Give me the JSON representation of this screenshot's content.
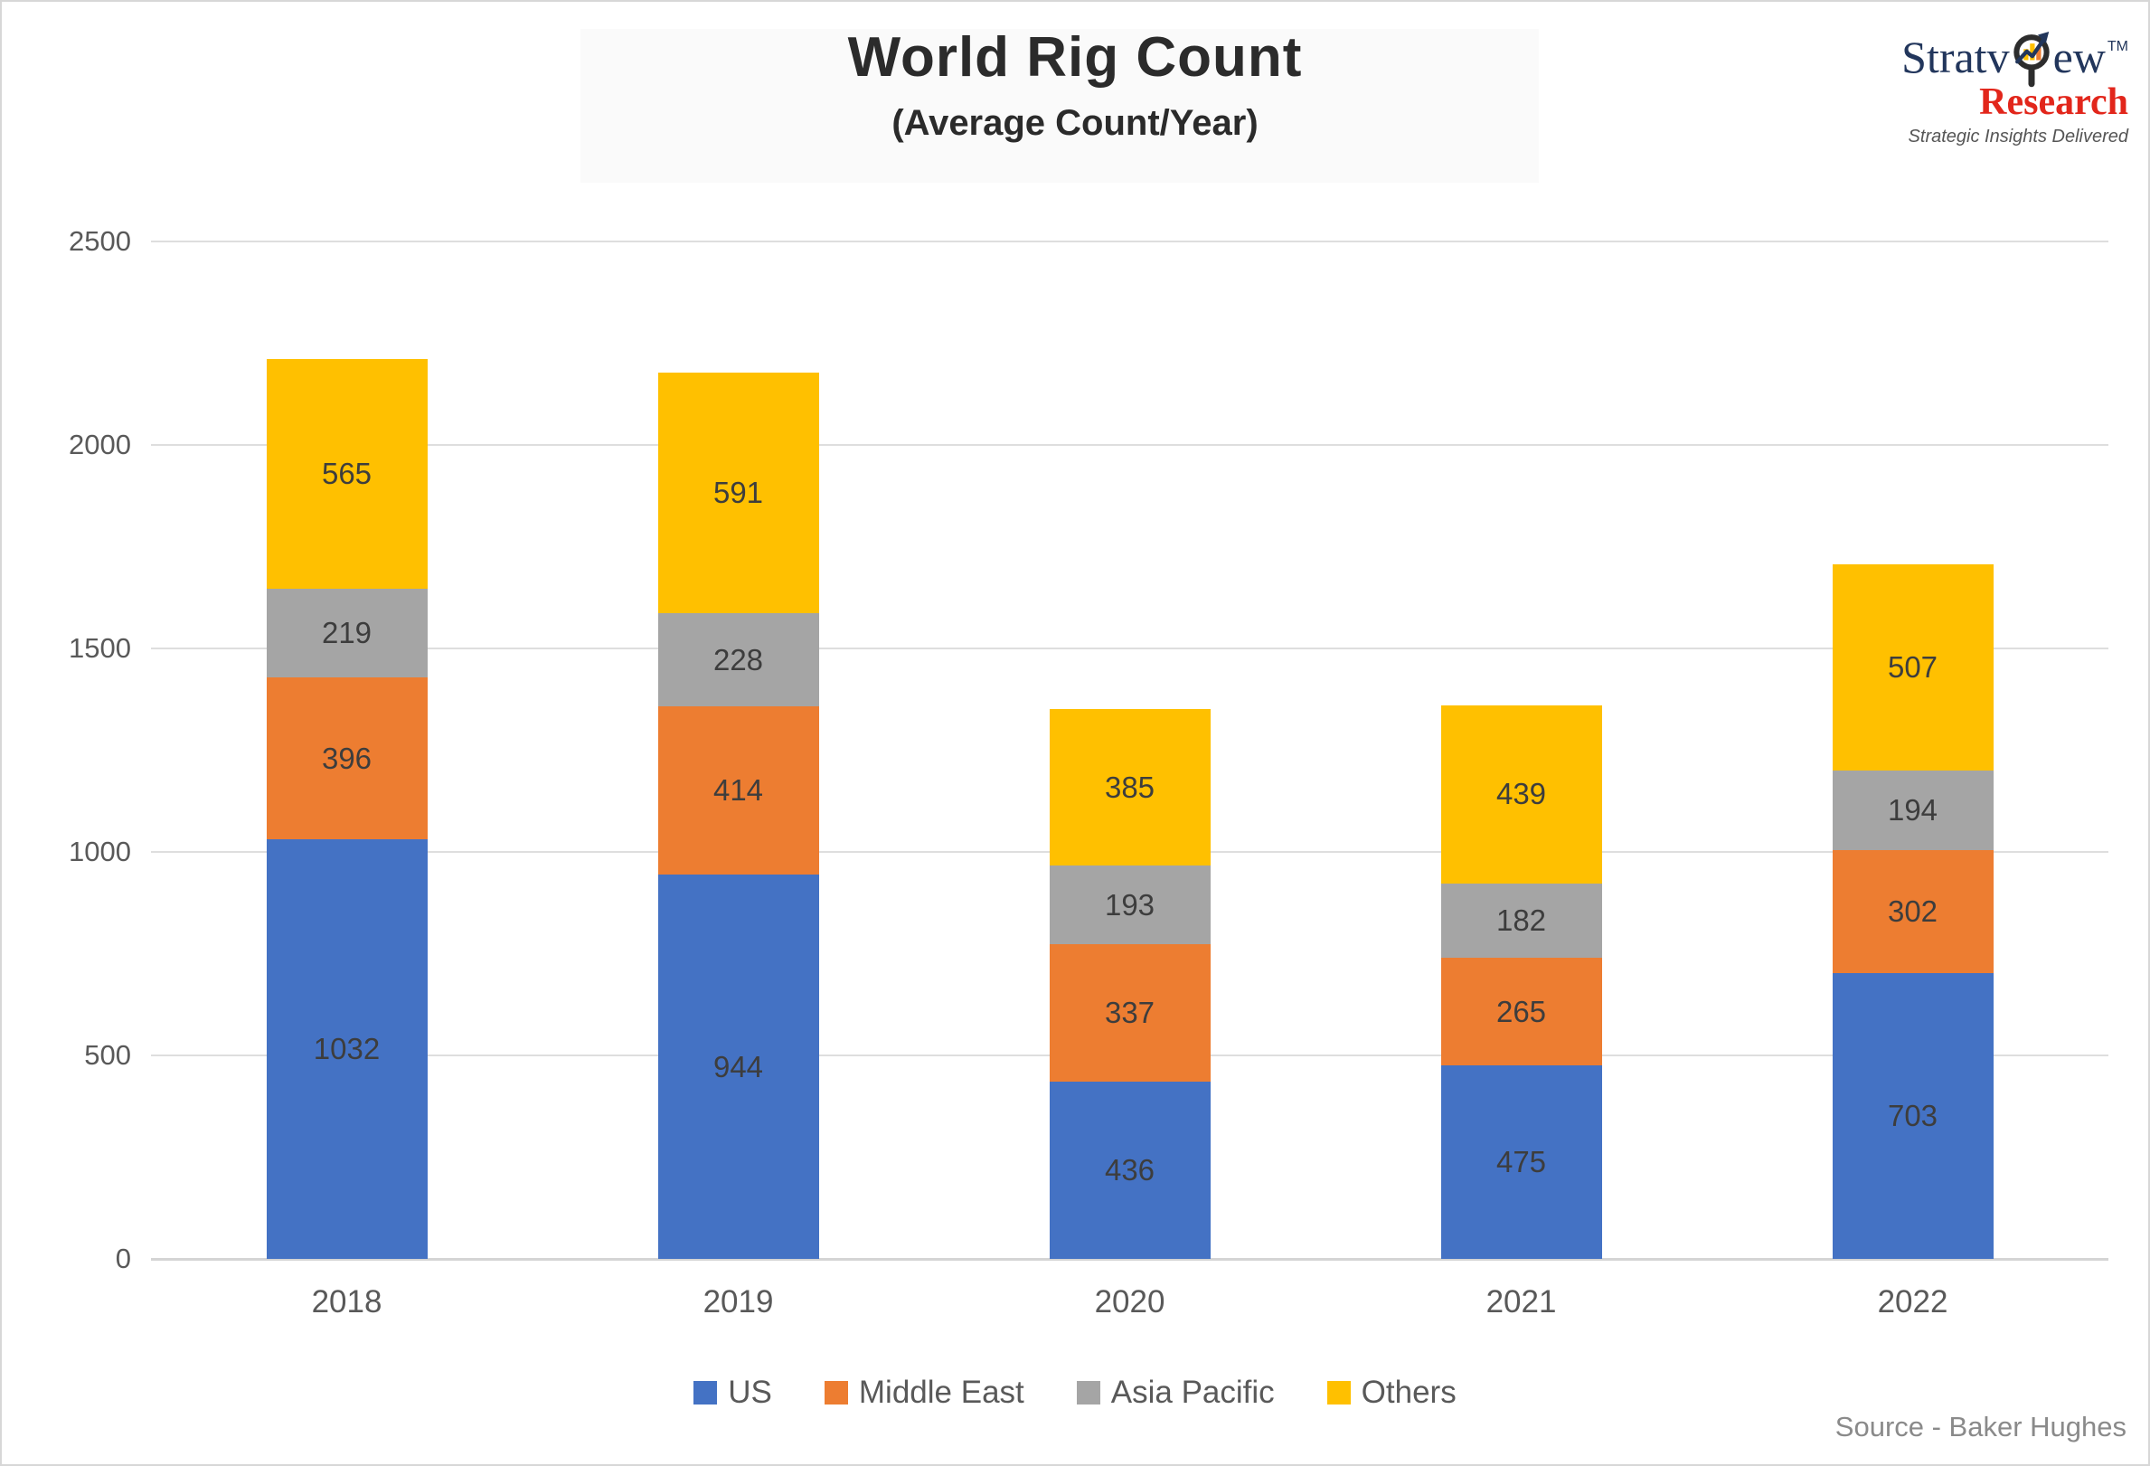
{
  "logo": {
    "brand_part1": "Stratv",
    "brand_part2": "ew",
    "tm": "TM",
    "brand_bottom": "Research",
    "tagline": "Strategic Insights Delivered",
    "colors": {
      "navy": "#22365c",
      "red": "#e2261b",
      "tagline_gray": "#555555"
    }
  },
  "source_note": "Source - Baker Hughes",
  "chart_data": {
    "type": "bar",
    "stacked": true,
    "title": "World Rig Count",
    "subtitle": "(Average Count/Year)",
    "categories": [
      "2018",
      "2019",
      "2020",
      "2021",
      "2022"
    ],
    "series": [
      {
        "name": "US",
        "color": "#4472C4",
        "values": [
          1032,
          944,
          436,
          475,
          703
        ]
      },
      {
        "name": "Middle East",
        "color": "#ED7D31",
        "values": [
          396,
          414,
          337,
          265,
          302
        ]
      },
      {
        "name": "Asia Pacific",
        "color": "#A5A5A5",
        "values": [
          219,
          228,
          193,
          182,
          194
        ]
      },
      {
        "name": "Others",
        "color": "#FFC000",
        "values": [
          565,
          591,
          385,
          439,
          507
        ]
      }
    ],
    "totals": [
      2212,
      2177,
      1351,
      1361,
      1706
    ],
    "ylim": [
      0,
      2500
    ],
    "yticks": [
      0,
      500,
      1000,
      1500,
      2000,
      2500
    ],
    "grid": true,
    "data_labels": true,
    "legend_position": "bottom",
    "colors": {
      "grid": "#dedede",
      "axis": "#d4d4d4",
      "label": "#3d3d3d",
      "tick": "#595959"
    }
  }
}
